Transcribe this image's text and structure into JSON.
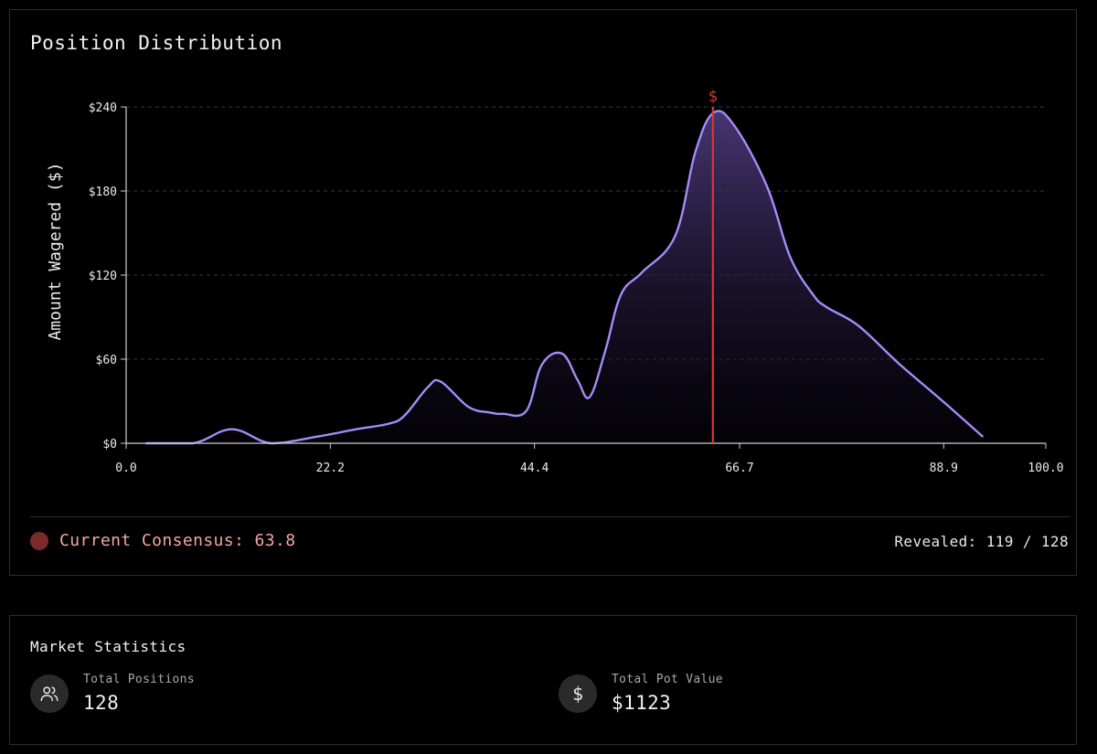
{
  "distribution": {
    "title": "Position Distribution",
    "consensus_text": "Current Consensus: 63.8",
    "revealed_text": "Revealed: 119 / 128"
  },
  "chart_data": {
    "type": "area",
    "ylabel": "Amount Wagered ($)",
    "xlabel": "",
    "xlim": [
      0,
      100
    ],
    "ylim": [
      0,
      240
    ],
    "x_ticks": [
      0.0,
      22.2,
      44.4,
      66.7,
      88.9,
      100.0
    ],
    "x_tick_labels": [
      "0.0",
      "22.2",
      "44.4",
      "66.7",
      "88.9",
      "100.0"
    ],
    "y_ticks": [
      0,
      60,
      120,
      180,
      240
    ],
    "y_tick_labels": [
      "$0",
      "$60",
      "$120",
      "$180",
      "$240"
    ],
    "grid": "horizontal dashed",
    "line_color": "#a78bfa",
    "marker_color": "#e0332e",
    "consensus_marker": {
      "x": 63.8,
      "label": "$"
    },
    "series": [
      {
        "x": [
          2.2,
          7.3,
          11.5,
          15.8,
          21.0,
          25.0,
          28.6,
          30.3,
          32.8,
          34.2,
          37.2,
          39.5,
          41.0,
          43.5,
          45.2,
          47.4,
          49.1,
          50.4,
          52.1,
          53.8,
          56.1,
          59.7,
          61.9,
          63.9,
          66.2,
          69.7,
          72.2,
          74.7,
          76.2,
          79.6,
          84.0,
          88.8,
          93.1
        ],
        "values": [
          0,
          0,
          10,
          0,
          5,
          10,
          14,
          20,
          40,
          44,
          26,
          22,
          21,
          23,
          56,
          64,
          45,
          33,
          66,
          106,
          122,
          148,
          208,
          236,
          226,
          183,
          133,
          106,
          97,
          84,
          57,
          30,
          5
        ]
      }
    ]
  },
  "stats": {
    "title": "Market Statistics",
    "positions_label": "Total Positions",
    "positions_value": "128",
    "positions_icon": "users-icon",
    "pot_label": "Total Pot Value",
    "pot_value": "$1123",
    "pot_icon": "dollar-icon",
    "pot_icon_glyph": "$"
  }
}
